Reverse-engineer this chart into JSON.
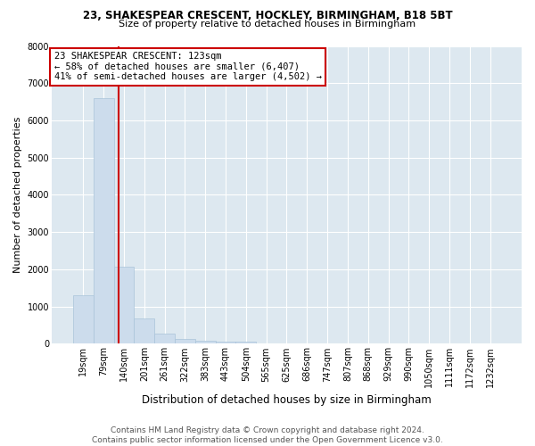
{
  "title1": "23, SHAKESPEAR CRESCENT, HOCKLEY, BIRMINGHAM, B18 5BT",
  "title2": "Size of property relative to detached houses in Birmingham",
  "xlabel": "Distribution of detached houses by size in Birmingham",
  "ylabel": "Number of detached properties",
  "footer1": "Contains HM Land Registry data © Crown copyright and database right 2024.",
  "footer2": "Contains public sector information licensed under the Open Government Licence v3.0.",
  "annotation_title": "23 SHAKESPEAR CRESCENT: 123sqm",
  "annotation_line1": "← 58% of detached houses are smaller (6,407)",
  "annotation_line2": "41% of semi-detached houses are larger (4,502) →",
  "bar_color": "#ccdcec",
  "bar_edge_color": "#aac4da",
  "vline_color": "#cc0000",
  "annotation_box_edgecolor": "#cc0000",
  "background_color": "#dde8f0",
  "x_labels": [
    "19sqm",
    "79sqm",
    "140sqm",
    "201sqm",
    "261sqm",
    "322sqm",
    "383sqm",
    "443sqm",
    "504sqm",
    "565sqm",
    "625sqm",
    "686sqm",
    "747sqm",
    "807sqm",
    "868sqm",
    "929sqm",
    "990sqm",
    "1050sqm",
    "1111sqm",
    "1172sqm",
    "1232sqm"
  ],
  "bar_heights": [
    1300,
    6600,
    2080,
    680,
    270,
    140,
    90,
    50,
    60,
    0,
    0,
    0,
    0,
    0,
    0,
    0,
    0,
    0,
    0,
    0,
    0
  ],
  "ylim": [
    0,
    8000
  ],
  "yticks": [
    0,
    1000,
    2000,
    3000,
    4000,
    5000,
    6000,
    7000,
    8000
  ],
  "vline_x_index": 1.72,
  "title1_fontsize": 8.5,
  "title2_fontsize": 8.0,
  "xlabel_fontsize": 8.5,
  "ylabel_fontsize": 8.0,
  "tick_fontsize": 7.0,
  "annotation_fontsize": 7.5,
  "footer_fontsize": 6.5
}
